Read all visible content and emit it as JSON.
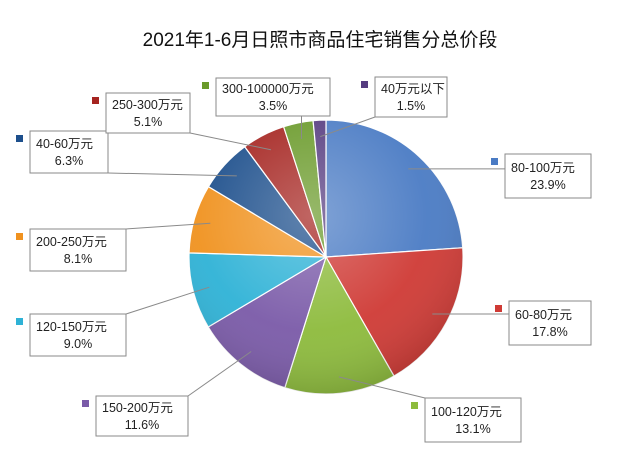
{
  "chart_data": {
    "type": "pie",
    "title": "2021年1-6月日照市商品住宅销售分总价段",
    "slices": [
      {
        "name": "80-100万元",
        "value_label": "23.9%",
        "value": 23.9,
        "color": "#4a7bc4"
      },
      {
        "name": "60-80万元",
        "value_label": "17.8%",
        "value": 17.8,
        "color": "#cf3a35"
      },
      {
        "name": "100-120万元",
        "value_label": "13.1%",
        "value": 13.1,
        "color": "#8dbb3c"
      },
      {
        "name": "150-200万元",
        "value_label": "11.6%",
        "value": 11.6,
        "color": "#7a5aa8"
      },
      {
        "name": "120-150万元",
        "value_label": "9.0%",
        "value": 9.0,
        "color": "#2eb2d6"
      },
      {
        "name": "200-250万元",
        "value_label": "8.1%",
        "value": 8.1,
        "color": "#f0921f"
      },
      {
        "name": "40-60万元",
        "value_label": "6.3%",
        "value": 6.3,
        "color": "#1d4f8c"
      },
      {
        "name": "250-300万元",
        "value_label": "5.1%",
        "value": 5.1,
        "color": "#a52420"
      },
      {
        "name": "300-100000万元",
        "value_label": "3.5%",
        "value": 3.5,
        "color": "#6a9a2a"
      },
      {
        "name": "40万元以下",
        "value_label": "1.5%",
        "value": 1.5,
        "color": "#563c80"
      }
    ]
  }
}
